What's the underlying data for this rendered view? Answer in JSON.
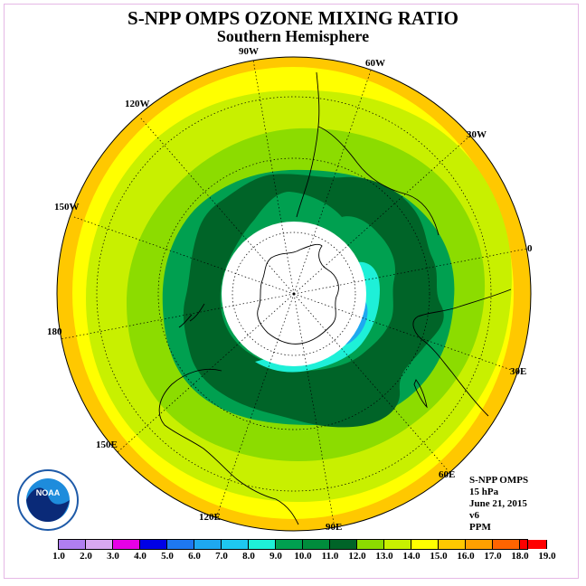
{
  "header": {
    "title": "S-NPP OMPS OZONE MIXING RATIO",
    "subtitle": "Southern Hemisphere"
  },
  "longitude_labels": [
    "90W",
    "60W",
    "30W",
    "0",
    "30E",
    "60E",
    "90E",
    "120E",
    "150E",
    "180",
    "150W",
    "120W"
  ],
  "info_block": {
    "instrument": "S-NPP OMPS",
    "level": "15 hPa",
    "date": "June 21, 2015",
    "version": "v6",
    "units": "PPM"
  },
  "colorbar": {
    "ticks": [
      "1.0",
      "2.0",
      "3.0",
      "4.0",
      "5.0",
      "6.0",
      "7.0",
      "8.0",
      "9.0",
      "10.0",
      "11.0",
      "12.0",
      "13.0",
      "14.0",
      "15.0",
      "16.0",
      "17.0",
      "18.0",
      "19.0"
    ],
    "colors": [
      "#b07ef0",
      "#d8a8f0",
      "#e600e6",
      "#0000e6",
      "#1e78f0",
      "#1ea8f0",
      "#1ec8f0",
      "#1ef0d8",
      "#00a050",
      "#008c3c",
      "#006428",
      "#8cdc00",
      "#c8f000",
      "#ffff00",
      "#ffc800",
      "#ffa000",
      "#ff6400",
      "#ff0000",
      "#8c5a3c"
    ]
  },
  "logo": {
    "text": "NOAA"
  },
  "colors": {
    "outer_orange": "#ffc800",
    "yellow": "#ffff00",
    "light_green": "#c8f000",
    "green": "#8cdc00",
    "mid_green": "#00a050",
    "dark_green": "#006428",
    "cyan": "#1ef0d8",
    "blue": "#1ea8f0"
  }
}
